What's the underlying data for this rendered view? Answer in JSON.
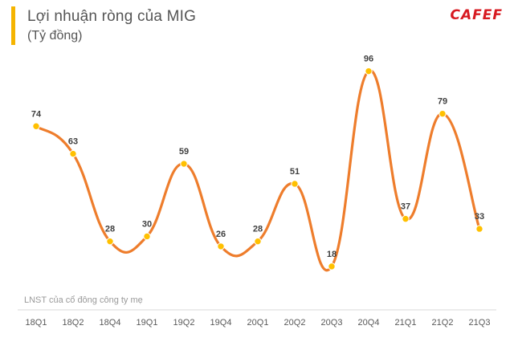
{
  "header": {
    "title": "Lợi nhuận ròng của MIG",
    "subtitle": "(Tỷ đồng)",
    "logo_text": "CAFEF"
  },
  "footnote": "LNST của cổ đông công ty mẹ",
  "colors": {
    "line": "#ee7d2c",
    "marker": "#ffc000",
    "accent": "#f5b400",
    "brand": "#d71920"
  },
  "chart_data": {
    "type": "line",
    "categories": [
      "18Q1",
      "18Q2",
      "18Q4",
      "19Q1",
      "19Q2",
      "19Q4",
      "20Q1",
      "20Q2",
      "20Q3",
      "20Q4",
      "21Q1",
      "21Q2",
      "21Q3"
    ],
    "series": [
      {
        "values": [
          74,
          63,
          28,
          30,
          59,
          26,
          28,
          51,
          18,
          96,
          37,
          79,
          33
        ]
      }
    ],
    "ylim": [
      0,
      110
    ],
    "grid": false,
    "xlabel": "",
    "ylabel": ""
  }
}
